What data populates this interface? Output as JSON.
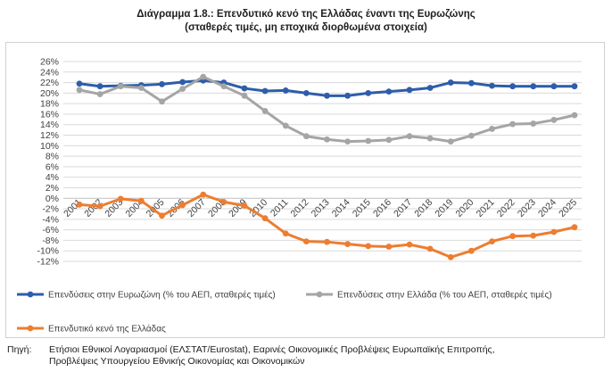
{
  "header": {
    "title_line1": "Διάγραμμα 1.8.: Επενδυτικό κενό της Ελλάδας έναντι της Ευρωζώνης",
    "title_line2": "(σταθερές τιμές, μη εποχικά διορθωμένα στοιχεία)"
  },
  "source": {
    "label": "Πηγή:",
    "line1": "Ετήσιοι Εθνικοί Λογαριασμοί (ΕΛΣΤΑΤ/Eurostat), Εαρινές Οικονομικές Προβλέψεις Ευρωπαϊκής Επιτροπής,",
    "line2": "Προβλέψεις Υπουργείου Εθνικής Οικονομίας και Οικονομικών"
  },
  "colors": {
    "eurozone": "#2E5DAA",
    "greece": "#A5A5A5",
    "gap": "#ED7D31",
    "grid": "#D9D9D9",
    "axis": "#BFBFBF"
  },
  "chart_data": {
    "type": "line",
    "x": [
      "2001",
      "2002",
      "2003",
      "2004",
      "2005",
      "2006",
      "2007",
      "2008",
      "2009",
      "2010",
      "2011",
      "2012",
      "2013",
      "2014",
      "2015",
      "2016",
      "2017",
      "2018",
      "2019",
      "2020",
      "2021",
      "2022",
      "2023",
      "2024",
      "2025"
    ],
    "ylim": [
      -12,
      26
    ],
    "yticks": [
      -12,
      -10,
      -8,
      -6,
      -4,
      -2,
      0,
      2,
      4,
      6,
      8,
      10,
      12,
      14,
      16,
      18,
      20,
      22,
      24,
      26
    ],
    "y_format": "percent",
    "grid": true,
    "legend_position": "bottom",
    "series": [
      {
        "name": "Επενδύσεις στην Ευρωζώνη (% του ΑΕΠ, σταθερές τιμές)",
        "color_key": "eurozone",
        "values": [
          21.8,
          21.3,
          21.4,
          21.5,
          21.7,
          22.1,
          22.4,
          22.0,
          20.9,
          20.4,
          20.5,
          20.0,
          19.5,
          19.5,
          20.0,
          20.3,
          20.6,
          21.0,
          22.0,
          21.9,
          21.4,
          21.3,
          21.3,
          21.3,
          21.3
        ]
      },
      {
        "name": "Επενδύσεις στην Ελλάδα (% του ΑΕΠ, σταθερές τιμές)",
        "color_key": "greece",
        "values": [
          20.6,
          19.8,
          21.3,
          21.0,
          18.4,
          20.8,
          23.1,
          21.3,
          19.5,
          16.6,
          13.8,
          11.8,
          11.2,
          10.8,
          10.9,
          11.1,
          11.8,
          11.4,
          10.8,
          11.9,
          13.2,
          14.1,
          14.2,
          14.9,
          15.8
        ]
      },
      {
        "name": "Επενδυτικό κενό της Ελλάδας",
        "color_key": "gap",
        "values": [
          -1.2,
          -1.5,
          -0.1,
          -0.5,
          -3.3,
          -1.3,
          0.7,
          -0.7,
          -1.4,
          -3.8,
          -6.7,
          -8.2,
          -8.3,
          -8.7,
          -9.1,
          -9.2,
          -8.8,
          -9.6,
          -11.2,
          -10.0,
          -8.2,
          -7.2,
          -7.1,
          -6.4,
          -5.5
        ]
      }
    ]
  }
}
